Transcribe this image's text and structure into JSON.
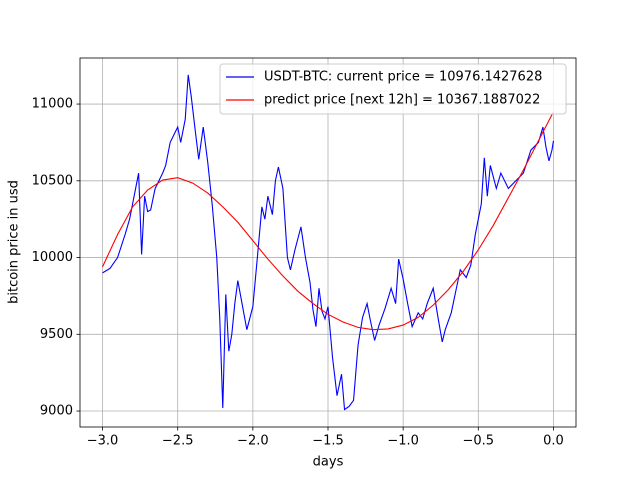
{
  "chart_data": {
    "type": "line",
    "xlabel": "days",
    "ylabel": "bitcoin price in usd",
    "xlim": [
      -3.15,
      0.15
    ],
    "ylim": [
      8896,
      11300
    ],
    "xticks": [
      {
        "value": -3,
        "label": "−3.0"
      },
      {
        "value": -2.5,
        "label": "−2.5"
      },
      {
        "value": -2,
        "label": "−2.0"
      },
      {
        "value": -1.5,
        "label": "−1.5"
      },
      {
        "value": -1,
        "label": "−1.0"
      },
      {
        "value": -0.5,
        "label": "−0.5"
      },
      {
        "value": 0,
        "label": "0.0"
      }
    ],
    "yticks": [
      9000,
      9500,
      10000,
      10500,
      11000
    ],
    "grid": true,
    "legend": "upper right",
    "series": [
      {
        "name": "USDT-BTC: current price = 10976.1427628",
        "color": "#0000ff",
        "x": [
          -3.0,
          -2.95,
          -2.9,
          -2.85,
          -2.82,
          -2.78,
          -2.76,
          -2.74,
          -2.72,
          -2.7,
          -2.68,
          -2.65,
          -2.6,
          -2.58,
          -2.55,
          -2.5,
          -2.48,
          -2.45,
          -2.43,
          -2.41,
          -2.38,
          -2.36,
          -2.33,
          -2.3,
          -2.27,
          -2.24,
          -2.22,
          -2.2,
          -2.18,
          -2.16,
          -2.14,
          -2.12,
          -2.1,
          -2.07,
          -2.04,
          -2.0,
          -1.97,
          -1.94,
          -1.92,
          -1.9,
          -1.87,
          -1.85,
          -1.83,
          -1.8,
          -1.77,
          -1.75,
          -1.72,
          -1.68,
          -1.65,
          -1.62,
          -1.6,
          -1.58,
          -1.56,
          -1.54,
          -1.52,
          -1.5,
          -1.47,
          -1.44,
          -1.41,
          -1.39,
          -1.36,
          -1.33,
          -1.3,
          -1.27,
          -1.24,
          -1.22,
          -1.19,
          -1.16,
          -1.12,
          -1.08,
          -1.05,
          -1.03,
          -1.0,
          -0.97,
          -0.94,
          -0.9,
          -0.87,
          -0.84,
          -0.8,
          -0.77,
          -0.74,
          -0.72,
          -0.68,
          -0.65,
          -0.62,
          -0.58,
          -0.55,
          -0.52,
          -0.48,
          -0.46,
          -0.44,
          -0.42,
          -0.38,
          -0.35,
          -0.3,
          -0.25,
          -0.2,
          -0.15,
          -0.1,
          -0.07,
          -0.05,
          -0.03,
          -0.01,
          0.0
        ],
        "values": [
          9900,
          9930,
          10000,
          10150,
          10250,
          10450,
          10550,
          10020,
          10400,
          10300,
          10310,
          10450,
          10550,
          10600,
          10750,
          10850,
          10750,
          10900,
          11190,
          11050,
          10800,
          10640,
          10850,
          10620,
          10340,
          10000,
          9600,
          9020,
          9760,
          9390,
          9500,
          9700,
          9850,
          9690,
          9530,
          9680,
          10000,
          10330,
          10250,
          10400,
          10280,
          10500,
          10590,
          10450,
          10000,
          9920,
          10050,
          10200,
          10000,
          9840,
          9660,
          9550,
          9800,
          9650,
          9600,
          9680,
          9350,
          9100,
          9240,
          9010,
          9030,
          9070,
          9430,
          9610,
          9700,
          9600,
          9460,
          9560,
          9670,
          9800,
          9700,
          9990,
          9860,
          9700,
          9550,
          9640,
          9600,
          9700,
          9800,
          9620,
          9450,
          9530,
          9640,
          9780,
          9920,
          9870,
          9950,
          10150,
          10350,
          10650,
          10400,
          10600,
          10450,
          10550,
          10450,
          10500,
          10550,
          10700,
          10750,
          10850,
          10720,
          10630,
          10700,
          10760
        ]
      },
      {
        "name": "predict price [next 12h] = 10367.1887022",
        "color": "#ff0000",
        "x": [
          -3.0,
          -2.9,
          -2.8,
          -2.7,
          -2.6,
          -2.5,
          -2.4,
          -2.3,
          -2.2,
          -2.1,
          -2.0,
          -1.9,
          -1.8,
          -1.7,
          -1.6,
          -1.5,
          -1.4,
          -1.3,
          -1.2,
          -1.1,
          -1.0,
          -0.9,
          -0.8,
          -0.7,
          -0.6,
          -0.5,
          -0.4,
          -0.3,
          -0.2,
          -0.1,
          0.0
        ],
        "values": [
          9940,
          10150,
          10330,
          10440,
          10505,
          10520,
          10485,
          10420,
          10330,
          10230,
          10110,
          9990,
          9880,
          9780,
          9700,
          9630,
          9580,
          9545,
          9530,
          9535,
          9560,
          9610,
          9690,
          9790,
          9910,
          10050,
          10210,
          10390,
          10570,
          10760,
          10950
        ]
      }
    ]
  }
}
